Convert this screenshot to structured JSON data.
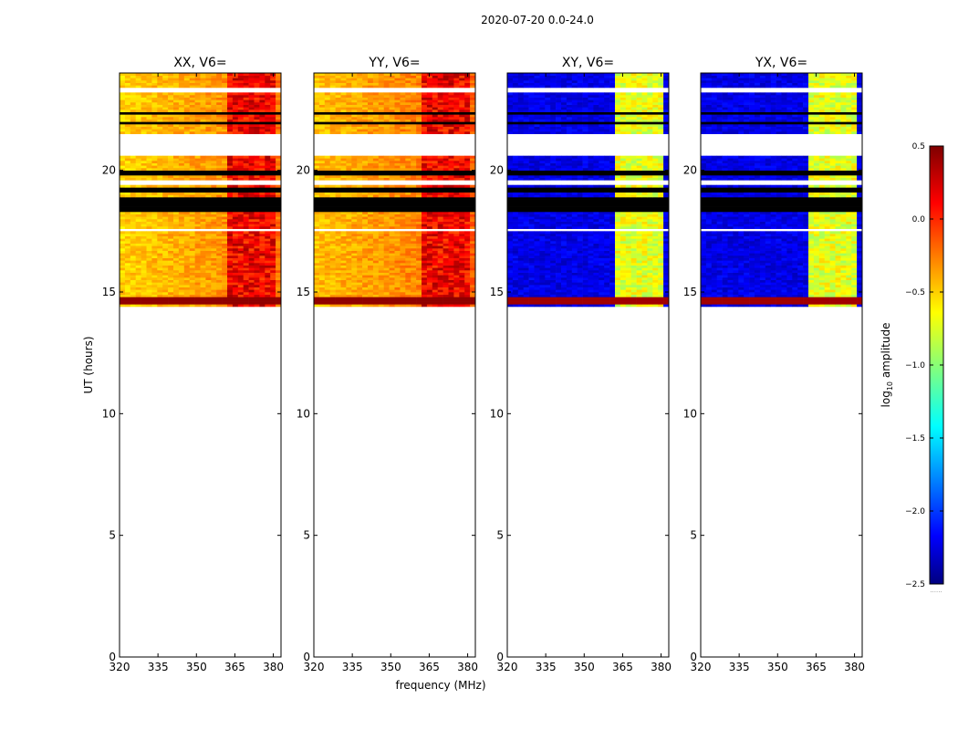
{
  "suptitle": "2020-07-20 0.0-24.0",
  "xlabel": "frequency (MHz)",
  "ylabel": "UT (hours)",
  "colorbar": {
    "label": "log",
    "label_sub": "10",
    "label_rest": " amplitude",
    "vmin": -2.5,
    "vmax": 0.5,
    "ticks": [
      0.5,
      0.0,
      -0.5,
      -1.0,
      -1.5,
      -2.0,
      -2.5
    ],
    "tick_labels": [
      "0.5",
      "0.0",
      "−0.5",
      "−1.0",
      "−1.5",
      "−2.0",
      "−2.5"
    ],
    "colormap": "jet",
    "extend_mark": "......"
  },
  "chart_data": [
    {
      "type": "heatmap",
      "title": "XX, V6=",
      "xlim": [
        320,
        383
      ],
      "ylim": [
        0,
        24
      ],
      "xticks": [
        320,
        335,
        350,
        365,
        380
      ],
      "yticks": [
        0,
        5,
        10,
        15,
        20
      ],
      "ytick_labels_shown": true,
      "data_range_ut": [
        14.4,
        24.0
      ],
      "base_level": -0.5,
      "flagged_ut": [
        [
          18.3,
          18.9
        ],
        [
          19.1,
          19.3
        ],
        [
          19.8,
          20.0
        ],
        [
          21.9,
          22.0
        ],
        [
          22.3,
          22.4
        ]
      ],
      "blank_ut": [
        [
          17.5,
          17.6
        ],
        [
          19.4,
          19.6
        ],
        [
          20.6,
          21.5
        ],
        [
          23.2,
          23.4
        ]
      ],
      "bright_band_ut": [
        [
          14.5,
          14.8
        ]
      ]
    },
    {
      "type": "heatmap",
      "title": "YY, V6=",
      "xlim": [
        320,
        383
      ],
      "ylim": [
        0,
        24
      ],
      "xticks": [
        320,
        335,
        350,
        365,
        380
      ],
      "yticks": [
        0,
        5,
        10,
        15,
        20
      ],
      "ytick_labels_shown": true,
      "data_range_ut": [
        14.4,
        24.0
      ],
      "base_level": -0.45,
      "flagged_ut": [
        [
          18.3,
          18.9
        ],
        [
          19.1,
          19.3
        ],
        [
          19.8,
          20.0
        ],
        [
          21.9,
          22.0
        ],
        [
          22.3,
          22.4
        ]
      ],
      "blank_ut": [
        [
          17.5,
          17.6
        ],
        [
          19.4,
          19.6
        ],
        [
          20.6,
          21.5
        ],
        [
          23.2,
          23.4
        ]
      ],
      "bright_band_ut": [
        [
          14.5,
          14.8
        ]
      ]
    },
    {
      "type": "heatmap",
      "title": "XY, V6=",
      "xlim": [
        320,
        383
      ],
      "ylim": [
        0,
        24
      ],
      "xticks": [
        320,
        335,
        350,
        365,
        380
      ],
      "yticks": [
        0,
        5,
        10,
        15,
        20
      ],
      "ytick_labels_shown": true,
      "data_range_ut": [
        14.4,
        24.0
      ],
      "base_level": -2.2,
      "flagged_ut": [
        [
          18.3,
          18.9
        ],
        [
          19.1,
          19.3
        ],
        [
          19.8,
          20.0
        ],
        [
          21.9,
          22.0
        ],
        [
          22.3,
          22.4
        ]
      ],
      "blank_ut": [
        [
          17.5,
          17.6
        ],
        [
          19.4,
          19.6
        ],
        [
          20.6,
          21.5
        ],
        [
          23.2,
          23.4
        ]
      ],
      "bright_band_ut": [
        [
          14.5,
          14.8
        ]
      ]
    },
    {
      "type": "heatmap",
      "title": "YX, V6=",
      "xlim": [
        320,
        383
      ],
      "ylim": [
        0,
        24
      ],
      "xticks": [
        320,
        335,
        350,
        365,
        380
      ],
      "yticks": [
        0,
        5,
        10,
        15,
        20
      ],
      "ytick_labels_shown": true,
      "data_range_ut": [
        14.4,
        24.0
      ],
      "base_level": -2.2,
      "flagged_ut": [
        [
          18.3,
          18.9
        ],
        [
          19.1,
          19.3
        ],
        [
          19.8,
          20.0
        ],
        [
          21.9,
          22.0
        ],
        [
          22.3,
          22.4
        ]
      ],
      "blank_ut": [
        [
          17.5,
          17.6
        ],
        [
          19.4,
          19.6
        ],
        [
          20.6,
          21.5
        ],
        [
          23.2,
          23.4
        ]
      ],
      "bright_band_ut": [
        [
          14.5,
          14.8
        ]
      ]
    }
  ]
}
